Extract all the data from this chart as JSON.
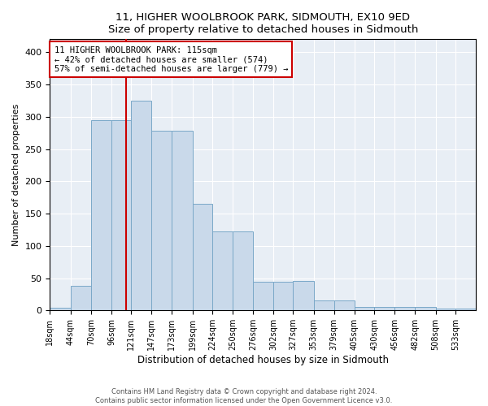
{
  "title": "11, HIGHER WOOLBROOK PARK, SIDMOUTH, EX10 9ED",
  "subtitle": "Size of property relative to detached houses in Sidmouth",
  "xlabel": "Distribution of detached houses by size in Sidmouth",
  "ylabel": "Number of detached properties",
  "bin_labels": [
    "18sqm",
    "44sqm",
    "70sqm",
    "96sqm",
    "121sqm",
    "147sqm",
    "173sqm",
    "199sqm",
    "224sqm",
    "250sqm",
    "276sqm",
    "302sqm",
    "327sqm",
    "353sqm",
    "379sqm",
    "405sqm",
    "430sqm",
    "456sqm",
    "482sqm",
    "508sqm",
    "533sqm"
  ],
  "bar_heights": [
    4,
    38,
    295,
    295,
    325,
    278,
    278,
    165,
    122,
    122,
    44,
    44,
    46,
    15,
    15,
    5,
    6,
    6,
    5,
    3,
    3
  ],
  "bar_color": "#c9d9ea",
  "bar_edge_color": "#7aa8c8",
  "bin_edges": [
    18,
    44,
    70,
    96,
    121,
    147,
    173,
    199,
    224,
    250,
    276,
    302,
    327,
    353,
    379,
    405,
    430,
    456,
    482,
    508,
    533,
    559
  ],
  "annotation_text": "11 HIGHER WOOLBROOK PARK: 115sqm\n← 42% of detached houses are smaller (574)\n57% of semi-detached houses are larger (779) →",
  "annotation_box_color": "#ffffff",
  "annotation_box_edge": "#cc0000",
  "red_line_color": "#cc0000",
  "footer_line1": "Contains HM Land Registry data © Crown copyright and database right 2024.",
  "footer_line2": "Contains public sector information licensed under the Open Government Licence v3.0.",
  "ylim": [
    0,
    420
  ],
  "background_color": "#e8eef5",
  "yticks": [
    0,
    50,
    100,
    150,
    200,
    250,
    300,
    350,
    400
  ],
  "property_sqm": 115
}
